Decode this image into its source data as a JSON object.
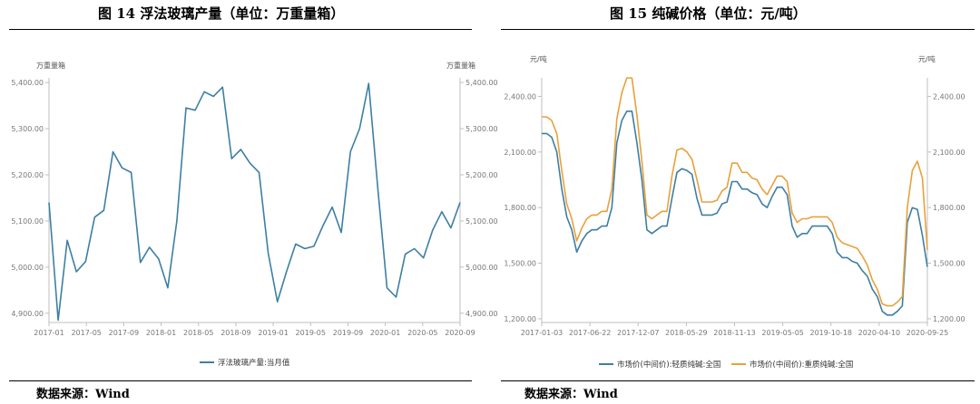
{
  "left_figure": {
    "title": "图 14 浮法玻璃产量（单位：万重量箱）",
    "source": "数据来源：Wind",
    "unit_left": "万重量箱",
    "unit_right": "万重量箱",
    "legend": "浮法玻璃产量:当月值"
  },
  "right_figure": {
    "title": "图 15 纯碱价格（单位：元/吨）",
    "source": "数据来源：Wind",
    "unit_left": "元/吨",
    "unit_right": "元/吨",
    "legend_1": "市场价(中间价):轻质纯碱:全国",
    "legend_2": "市场价(中间价):重质纯碱:全国"
  },
  "colors": {
    "series_blue": "#3d7fa3",
    "series_orange": "#e8a13a",
    "axis": "#bfbfbf"
  },
  "chart_data": [
    {
      "type": "line",
      "ylim": [
        4880,
        5410
      ],
      "y_ticks": [
        "5,400.00",
        "5,300.00",
        "5,200.00",
        "5,100.00",
        "5,000.00",
        "4,900.00"
      ],
      "y_tick_values": [
        5400,
        5300,
        5200,
        5100,
        5000,
        4900
      ],
      "x_ticks": [
        "2017-01",
        "2017-05",
        "2017-09",
        "2018-01",
        "2018-05",
        "2018-09",
        "2019-01",
        "2019-05",
        "2019-09",
        "2020-01",
        "2020-05",
        "2020-09"
      ],
      "series": [
        {
          "name": "浮法玻璃产量:当月值",
          "values": [
            5140,
            4885,
            5058,
            4990,
            5012,
            5108,
            5123,
            5250,
            5215,
            5205,
            5010,
            5043,
            5018,
            4955,
            5100,
            5345,
            5340,
            5380,
            5370,
            5390,
            5235,
            5255,
            5225,
            5205,
            5030,
            4925,
            4990,
            5050,
            5040,
            5045,
            5090,
            5130,
            5075,
            5250,
            5300,
            5398,
            5170,
            4955,
            4935,
            5028,
            5040,
            5020,
            5080,
            5120,
            5085,
            5140
          ]
        }
      ]
    },
    {
      "type": "line",
      "ylim": [
        1180,
        2500
      ],
      "y_ticks": [
        "2,400.00",
        "2,100.00",
        "1,800.00",
        "1,500.00",
        "1,200.00"
      ],
      "y_tick_values": [
        2400,
        2100,
        1800,
        1500,
        1200
      ],
      "x_ticks": [
        "2017-01-03",
        "2017-06-22",
        "2017-12-07",
        "2018-05-29",
        "2018-11-13",
        "2019-05-05",
        "2019-10-18",
        "2020-04-10",
        "2020-09-25"
      ],
      "series": [
        {
          "name": "市场价(中间价):轻质纯碱:全国",
          "values": [
            2200,
            2200,
            2180,
            2100,
            1900,
            1750,
            1680,
            1560,
            1620,
            1660,
            1680,
            1680,
            1700,
            1700,
            1800,
            2150,
            2270,
            2320,
            2320,
            2150,
            1950,
            1680,
            1660,
            1680,
            1700,
            1700,
            1850,
            1990,
            2010,
            2000,
            1980,
            1850,
            1760,
            1760,
            1760,
            1770,
            1820,
            1830,
            1940,
            1940,
            1900,
            1900,
            1880,
            1870,
            1820,
            1800,
            1860,
            1910,
            1910,
            1870,
            1700,
            1640,
            1660,
            1660,
            1700,
            1700,
            1700,
            1700,
            1660,
            1560,
            1530,
            1530,
            1510,
            1500,
            1460,
            1430,
            1360,
            1320,
            1240,
            1220,
            1220,
            1240,
            1270,
            1720,
            1800,
            1790,
            1650,
            1480
          ]
        },
        {
          "name": "市场价(中间价):重质纯碱:全国",
          "values": [
            2290,
            2290,
            2270,
            2200,
            2000,
            1820,
            1740,
            1620,
            1690,
            1740,
            1760,
            1760,
            1780,
            1780,
            1900,
            2280,
            2420,
            2500,
            2500,
            2300,
            2050,
            1760,
            1740,
            1760,
            1780,
            1780,
            1970,
            2110,
            2120,
            2100,
            2060,
            1950,
            1830,
            1830,
            1830,
            1840,
            1890,
            1910,
            2040,
            2040,
            1990,
            1990,
            1960,
            1950,
            1900,
            1870,
            1920,
            1970,
            1970,
            1940,
            1770,
            1720,
            1740,
            1740,
            1750,
            1750,
            1750,
            1750,
            1720,
            1640,
            1610,
            1600,
            1590,
            1580,
            1540,
            1490,
            1410,
            1360,
            1280,
            1270,
            1270,
            1290,
            1320,
            1800,
            2000,
            2050,
            1960,
            1570
          ]
        }
      ]
    }
  ]
}
